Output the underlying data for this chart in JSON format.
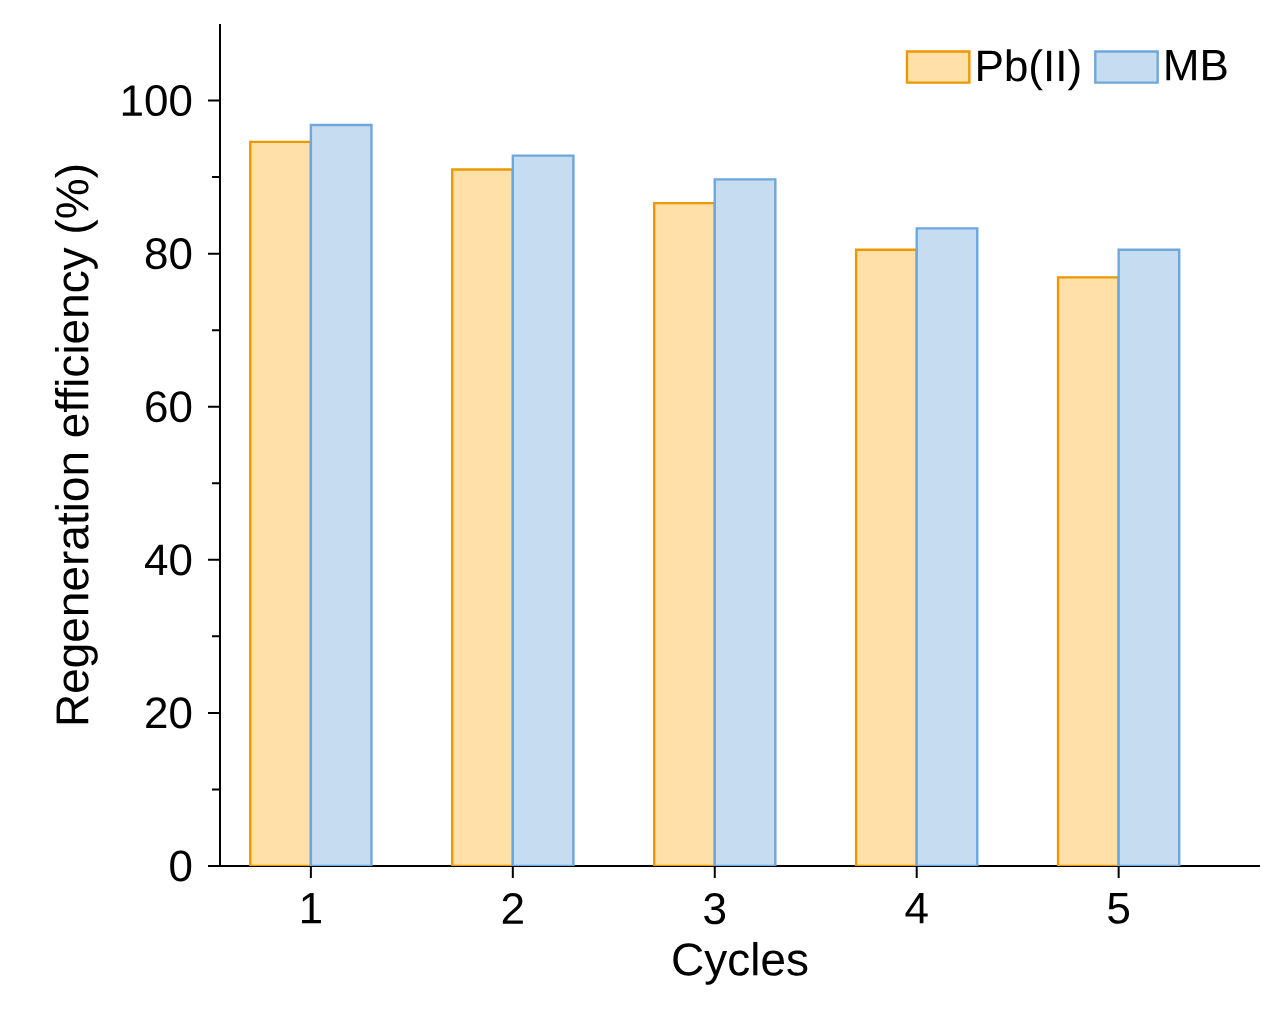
{
  "chart_data": {
    "type": "bar",
    "xlabel": "Cycles",
    "ylabel": "Regeneration efficiency (%)",
    "categories": [
      "1",
      "2",
      "3",
      "4",
      "5"
    ],
    "series": [
      {
        "name": "Pb(II)",
        "color": "#ffe0a8",
        "values": [
          94.6,
          91.0,
          86.6,
          80.5,
          76.9
        ]
      },
      {
        "name": "MB",
        "color": "#c6dcf0",
        "values": [
          96.8,
          92.8,
          89.7,
          83.3,
          80.5
        ]
      }
    ],
    "ylim": [
      0,
      110
    ],
    "yticks": [
      0,
      20,
      40,
      60,
      80,
      100
    ],
    "grid": false,
    "legend": "top right"
  }
}
